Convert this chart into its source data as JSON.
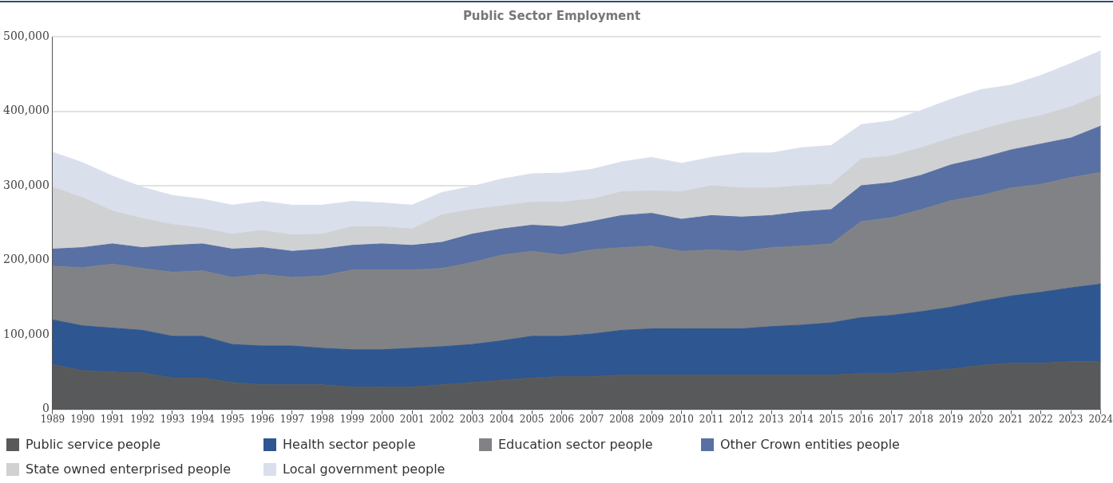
{
  "chart_data": {
    "type": "area",
    "title": "Public Sector Employment",
    "stacked": true,
    "grid": "y",
    "legend": "bottom",
    "categories": [
      "1989",
      "1990",
      "1991",
      "1992",
      "1993",
      "1994",
      "1995",
      "1996",
      "1997",
      "1998",
      "1999",
      "2000",
      "2001",
      "2002",
      "2003",
      "2004",
      "2005",
      "2006",
      "2007",
      "2008",
      "2009",
      "2010",
      "2011",
      "2012",
      "2013",
      "2014",
      "2015",
      "2016",
      "2017",
      "2018",
      "2019",
      "2020",
      "2021",
      "2022",
      "2023",
      "2024"
    ],
    "ylim": [
      0,
      500000
    ],
    "yticks": [
      0,
      {
        "value": 100000,
        "label": "100,000"
      },
      {
        "value": 200000,
        "label": "200,000"
      },
      {
        "value": 300000,
        "label": "300,000"
      },
      {
        "value": 400000,
        "label": "400,000"
      },
      {
        "value": 500000,
        "label": "500,000"
      }
    ],
    "series": [
      {
        "name": "Public service people",
        "color": "#58595b",
        "values": [
          60000,
          52000,
          50000,
          49000,
          42000,
          42000,
          36000,
          33000,
          33000,
          33000,
          30000,
          30000,
          30000,
          33000,
          36000,
          39000,
          42000,
          44000,
          44000,
          46000,
          46000,
          46000,
          46000,
          46000,
          46000,
          46000,
          46000,
          48000,
          48000,
          51000,
          54000,
          59000,
          62000,
          62000,
          64000,
          64000
        ]
      },
      {
        "name": "Health sector people",
        "color": "#2e5690",
        "values": [
          60000,
          60000,
          59000,
          57000,
          56000,
          56000,
          51000,
          52000,
          52000,
          49000,
          50000,
          50000,
          52000,
          51000,
          51000,
          53000,
          56000,
          54000,
          57000,
          60000,
          62000,
          62000,
          62000,
          62000,
          65000,
          67000,
          70000,
          75000,
          78000,
          80000,
          83000,
          86000,
          90000,
          95000,
          99000,
          104000
        ]
      },
      {
        "name": "Education sector people",
        "color": "#818285",
        "values": [
          72000,
          78000,
          86000,
          83000,
          86000,
          88000,
          90000,
          96000,
          92000,
          97000,
          107000,
          107000,
          105000,
          105000,
          110000,
          115000,
          114000,
          109000,
          113000,
          111000,
          111000,
          104000,
          106000,
          104000,
          106000,
          106000,
          106000,
          129000,
          131000,
          137000,
          143000,
          142000,
          145000,
          145000,
          148000,
          150000
        ]
      },
      {
        "name": "Other Crown entities people",
        "color": "#5870a4",
        "values": [
          23000,
          27000,
          27000,
          28000,
          36000,
          36000,
          38000,
          36000,
          35000,
          36000,
          33000,
          35000,
          33000,
          35000,
          38000,
          35000,
          35000,
          38000,
          38000,
          43000,
          44000,
          43000,
          46000,
          46000,
          43000,
          46000,
          46000,
          48000,
          47000,
          46000,
          48000,
          50000,
          51000,
          54000,
          53000,
          62000
        ]
      },
      {
        "name": "State owned enterprised people",
        "color": "#d0d1d3",
        "values": [
          83000,
          67000,
          44000,
          39000,
          28000,
          21000,
          20000,
          23000,
          22000,
          20000,
          25000,
          23000,
          22000,
          37000,
          33000,
          31000,
          31000,
          33000,
          30000,
          32000,
          30000,
          37000,
          40000,
          39000,
          37000,
          35000,
          34000,
          36000,
          36000,
          37000,
          36000,
          38000,
          38000,
          38000,
          42000,
          42000
        ]
      },
      {
        "name": "Local government people",
        "color": "#dadfec",
        "values": [
          47000,
          47000,
          47000,
          42000,
          39000,
          39000,
          39000,
          39000,
          40000,
          39000,
          34000,
          32000,
          32000,
          30000,
          31000,
          36000,
          38000,
          39000,
          40000,
          40000,
          45000,
          38000,
          38000,
          47000,
          47000,
          51000,
          52000,
          46000,
          47000,
          50000,
          52000,
          54000,
          49000,
          54000,
          58000,
          59000
        ]
      }
    ]
  }
}
